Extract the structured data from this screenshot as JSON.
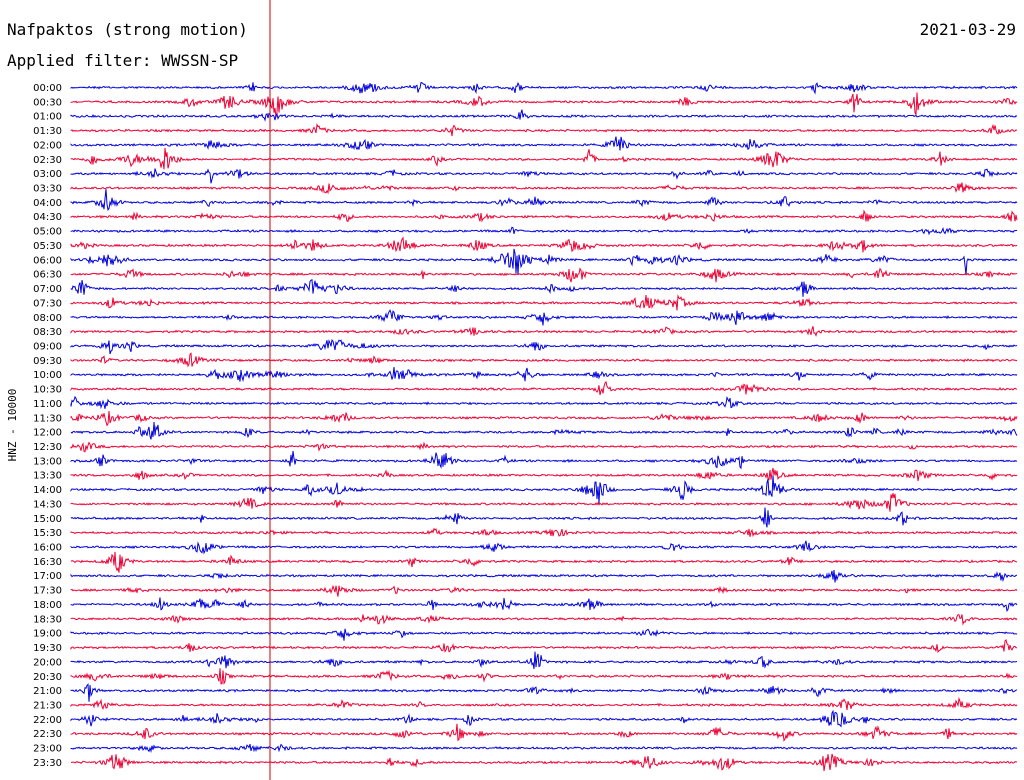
{
  "header": {
    "title": "Nafpaktos (strong motion)",
    "filter": "Applied filter: WWSSN-SP",
    "date": "2021-03-29"
  },
  "chart_data": {
    "type": "line",
    "title": "Nafpaktos (strong motion)",
    "subtitle": "Applied filter: WWSSN-SP",
    "date": "2021-03-29",
    "ylabel": "HNZ - 10000",
    "xlabel": "",
    "rows": [
      "00:00",
      "00:30",
      "01:00",
      "01:30",
      "02:00",
      "02:30",
      "03:00",
      "03:30",
      "04:00",
      "04:30",
      "05:00",
      "05:30",
      "06:00",
      "06:30",
      "07:00",
      "07:30",
      "08:00",
      "08:30",
      "09:00",
      "09:30",
      "10:00",
      "10:30",
      "11:00",
      "11:30",
      "12:00",
      "12:30",
      "13:00",
      "13:30",
      "14:00",
      "14:30",
      "15:00",
      "15:30",
      "16:00",
      "16:30",
      "17:00",
      "17:30",
      "18:00",
      "18:30",
      "19:00",
      "19:30",
      "20:00",
      "20:30",
      "21:00",
      "21:30",
      "22:00",
      "22:30",
      "23:00",
      "23:30"
    ],
    "row_minutes": 30,
    "marker_fraction": 0.21,
    "series_colors": [
      "#0000dd",
      "#ee0033"
    ],
    "marker_color": "#cc0000",
    "grid": false
  }
}
